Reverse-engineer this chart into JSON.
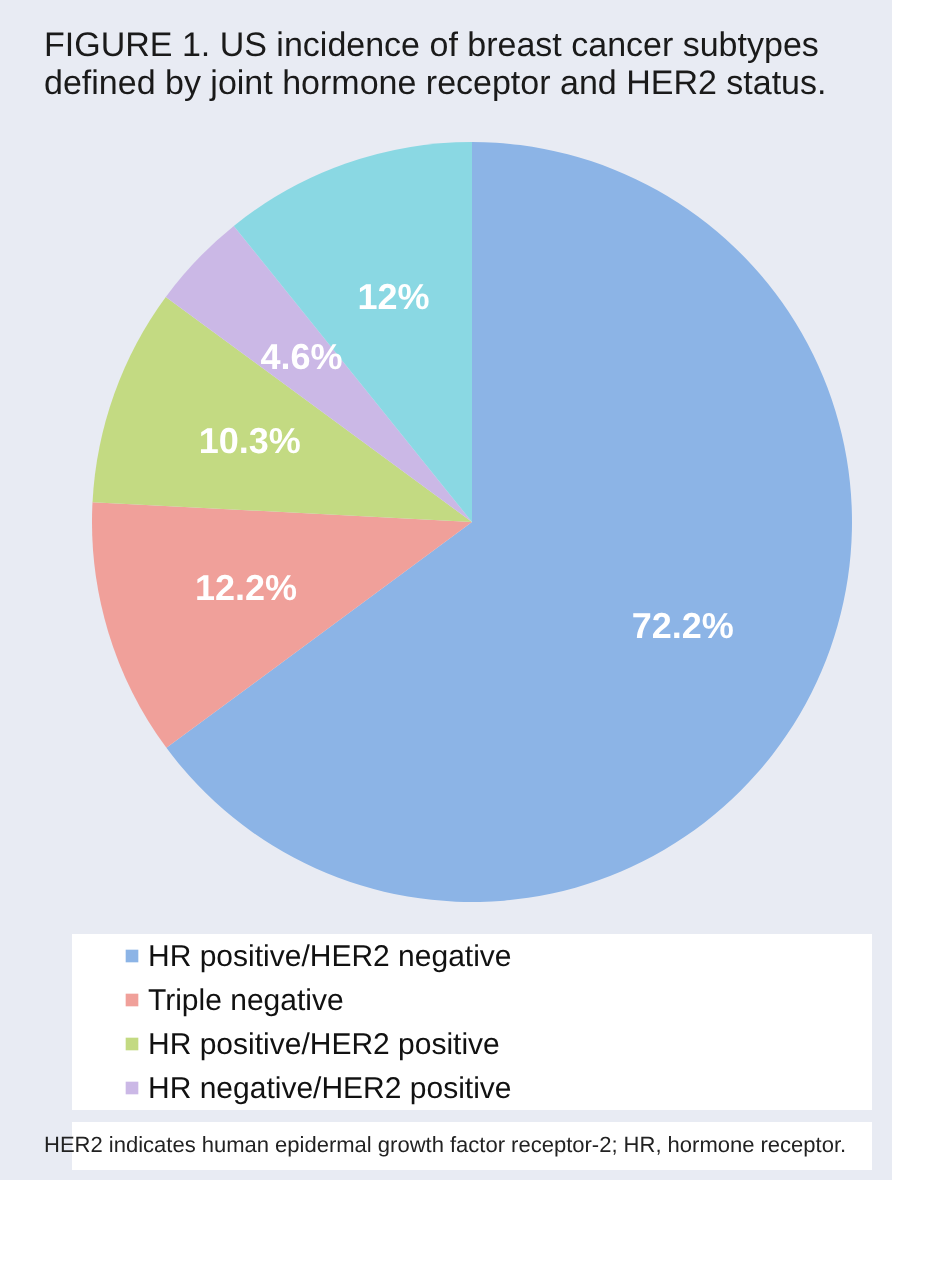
{
  "chart_data": {
    "type": "pie",
    "title": "FIGURE 1. US incidence of breast cancer subtypes defined by joint hormone receptor and HER2 status.",
    "categories": [
      "HR positive/HER2 negative",
      "Triple negative",
      "HR positive/HER2 positive",
      "HR negative/HER2 positive",
      null
    ],
    "values": [
      72.2,
      12.2,
      10.3,
      4.6,
      12
    ],
    "value_labels": [
      "72.2%",
      "12.2%",
      "10.3%",
      "4.6%",
      "12%"
    ],
    "colors": [
      "#8cb4e6",
      "#f0a09a",
      "#c3da82",
      "#cbb8e6",
      "#8ad8e3"
    ],
    "legend": "bottom",
    "annotations": [
      "HER2 indicates human epidermal growth factor receptor-2; HR, hormone receptor."
    ]
  }
}
